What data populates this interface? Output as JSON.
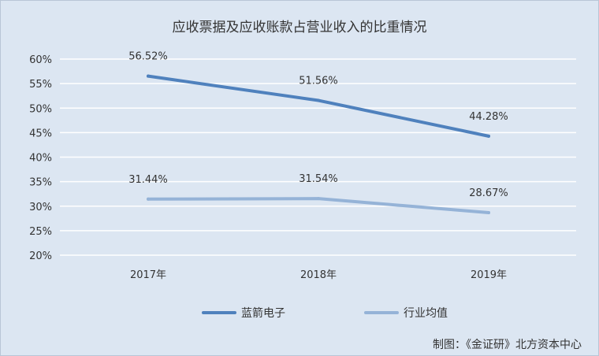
{
  "chart_data": {
    "type": "line",
    "title": "应收票据及应收账款占营业收入的比重情况",
    "categories": [
      "2017年",
      "2018年",
      "2019年"
    ],
    "series": [
      {
        "name": "蓝箭电子",
        "values": [
          56.52,
          51.56,
          44.28
        ],
        "labels": [
          "56.52%",
          "51.56%",
          "44.28%"
        ],
        "color": "#4f81bd"
      },
      {
        "name": "行业均值",
        "values": [
          31.44,
          31.54,
          28.67
        ],
        "labels": [
          "31.44%",
          "31.54%",
          "28.67%"
        ],
        "color": "#95b3d7"
      }
    ],
    "ylim": [
      20,
      60
    ],
    "yticks": [
      20,
      25,
      30,
      35,
      40,
      45,
      50,
      55,
      60
    ],
    "ytick_labels": [
      "20%",
      "25%",
      "30%",
      "35%",
      "40%",
      "45%",
      "50%",
      "55%",
      "60%"
    ],
    "grid": true,
    "legend": "bottom",
    "xlabel": "",
    "ylabel": ""
  },
  "source": "制图：《金证研》北方资本中心",
  "colors": {
    "background": "#dce6f2",
    "grid": "#ffffff"
  }
}
